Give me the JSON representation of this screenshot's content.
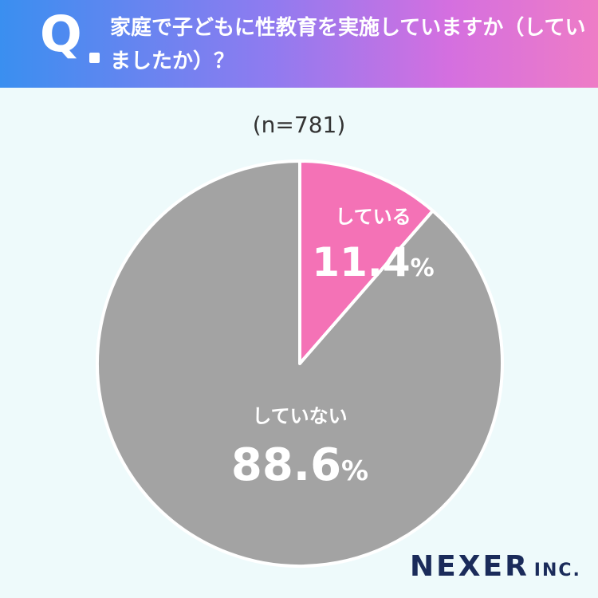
{
  "question": {
    "mark": "Q",
    "text": "家庭で子どもに性教育を実施していますか（していましたか）？"
  },
  "sample": "(n=781)",
  "brand": {
    "name": "NEXER",
    "suffix": "INC."
  },
  "chart_data": {
    "type": "pie",
    "slices": [
      {
        "label": "している",
        "value": 11.4,
        "display": "11.4",
        "unit": "%",
        "color": "#f472b6"
      },
      {
        "label": "していない",
        "value": 88.6,
        "display": "88.6",
        "unit": "%",
        "color": "#a3a3a3"
      }
    ]
  }
}
